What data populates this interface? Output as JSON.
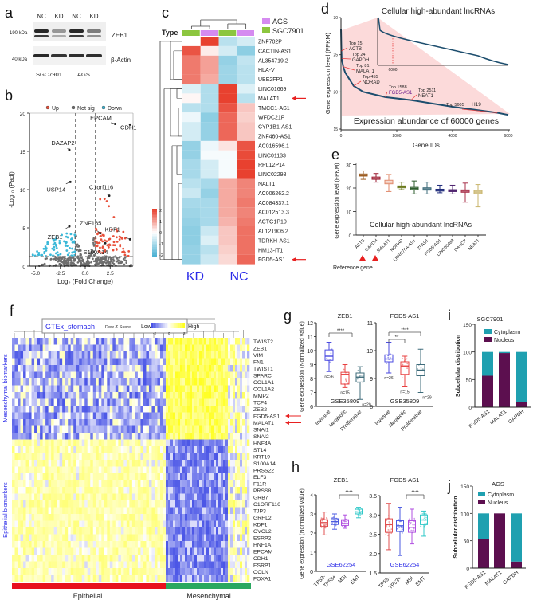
{
  "chart_data": [
    {
      "panel": "a",
      "type": "western-blot",
      "lanes": [
        "NC",
        "KD",
        "NC",
        "KD"
      ],
      "groups": [
        "SGC7901",
        "AGS"
      ],
      "markers": [
        "190 kDa",
        "40 kDa"
      ],
      "proteins": [
        "ZEB1",
        "β-Actin"
      ],
      "band_intensity": {
        "ZEB1": [
          1.0,
          0.35,
          1.0,
          0.5
        ],
        "beta_actin": [
          1.0,
          0.9,
          0.95,
          0.95
        ]
      }
    },
    {
      "panel": "b",
      "type": "scatter",
      "legend": [
        "Up",
        "Not sig",
        "Down"
      ],
      "colors": {
        "Up": "#e8503a",
        "Not sig": "#6e6e6e",
        "Down": "#3ab8d8"
      },
      "xlabel": "Log₂ (Fold Change)",
      "ylabel": "-Log₁₀ (Padj)",
      "xlim": [
        -5.5,
        4.8
      ],
      "ylim": [
        0,
        20
      ],
      "xticks": [
        "-5.0",
        "-2.5",
        "0.0",
        "2.5"
      ],
      "xtick_values": [
        -5,
        -2.5,
        0,
        2.5
      ],
      "yticks": [
        "0",
        "5",
        "10",
        "15",
        "20"
      ],
      "ytick_values": [
        0,
        5,
        10,
        15,
        20
      ],
      "thresholds": {
        "log2fc": [
          -1,
          1
        ],
        "neg_log10_padj": 1.3
      },
      "labeled_points": [
        {
          "gene": "EPCAM",
          "x": 3.0,
          "y": 18.6,
          "group": "Up"
        },
        {
          "gene": "CDH1",
          "x": 4.5,
          "y": 18.5,
          "group": "Up"
        },
        {
          "gene": "DAZAP2",
          "x": -1.6,
          "y": 15.2,
          "group": "Down"
        },
        {
          "gene": "USP14",
          "x": -1.5,
          "y": 11.0,
          "group": "Down"
        },
        {
          "gene": "C1orf116",
          "x": 2.4,
          "y": 9.2,
          "group": "Up"
        },
        {
          "gene": "ZEB1",
          "x": -1.6,
          "y": 5.2,
          "group": "Down"
        },
        {
          "gene": "ZNF165",
          "x": 1.5,
          "y": 4.3,
          "group": "Up"
        },
        {
          "gene": "S100A14",
          "x": 2.0,
          "y": 3.0,
          "group": "Up"
        },
        {
          "gene": "KDF1",
          "x": 4.5,
          "y": 3.5,
          "group": "Up"
        }
      ]
    },
    {
      "panel": "c",
      "type": "heatmap",
      "type_label": "Type",
      "legend": [
        {
          "name": "AGS",
          "color": "#d58bf0"
        },
        {
          "name": "SGC7901",
          "color": "#8cc63f"
        }
      ],
      "columns": [
        {
          "type": "SGC7901",
          "group": "KD"
        },
        {
          "type": "AGS",
          "group": "KD"
        },
        {
          "type": "SGC7901",
          "group": "NC"
        },
        {
          "type": "AGS",
          "group": "NC"
        }
      ],
      "group_labels": [
        "KD",
        "NC"
      ],
      "scale_ticks": [
        "2",
        "1",
        "0",
        "-1",
        "-2"
      ],
      "highlighted": [
        "MALAT1",
        "FGD5-AS1"
      ],
      "rows": [
        "ZNF702P",
        "CACTIN-AS1",
        "AL354719.2",
        "HLA-V",
        "UBE2FP1",
        "LINC01669",
        "MALAT1",
        "TMCC1-AS1",
        "WFDC21P",
        "CYP1B1-AS1",
        "ZNF460-AS1",
        "AC016596.1",
        "LINC01133",
        "RPL12P14",
        "LINC02298",
        "NALT1",
        "AC006262.2",
        "AC084337.1",
        "AC012513.3",
        "ACTG1P10",
        "AL121906.2",
        "TDRKH-AS1",
        "HM13-IT1",
        "FGD5-AS1"
      ],
      "values": [
        [
          0.0,
          2.0,
          -0.8,
          -0.5
        ],
        [
          1.8,
          0.2,
          -0.5,
          -1.3
        ],
        [
          1.4,
          1.0,
          -1.2,
          -0.7
        ],
        [
          1.4,
          1.0,
          -1.1,
          -0.8
        ],
        [
          1.4,
          0.9,
          -1.1,
          -0.8
        ],
        [
          -0.4,
          -0.9,
          2.0,
          -0.4
        ],
        [
          0.1,
          -0.9,
          2.0,
          -0.8
        ],
        [
          -0.8,
          -0.9,
          1.8,
          0.6
        ],
        [
          -0.2,
          -1.3,
          1.6,
          0.5
        ],
        [
          -0.5,
          -1.2,
          1.6,
          0.6
        ],
        [
          -0.5,
          -1.2,
          1.6,
          0.6
        ],
        [
          -1.2,
          -0.2,
          0.3,
          1.8
        ],
        [
          -1.2,
          -0.1,
          -0.1,
          1.9
        ],
        [
          -1.0,
          -0.5,
          -0.1,
          2.0
        ],
        [
          -1.0,
          -0.5,
          -0.1,
          2.0
        ],
        [
          -0.8,
          -1.0,
          0.9,
          1.3
        ],
        [
          -0.6,
          -1.2,
          0.9,
          1.3
        ],
        [
          -1.0,
          -1.0,
          0.9,
          1.4
        ],
        [
          -1.1,
          -1.0,
          0.9,
          1.3
        ],
        [
          -1.2,
          -1.0,
          0.8,
          1.4
        ],
        [
          -1.3,
          -0.6,
          0.6,
          1.5
        ],
        [
          -1.3,
          -0.4,
          0.6,
          1.5
        ],
        [
          -1.2,
          -0.8,
          0.5,
          1.5
        ],
        [
          -1.2,
          -0.6,
          0.4,
          1.6
        ]
      ]
    },
    {
      "panel": "d",
      "type": "line",
      "title": "Cellular high-abundant lncRNAs",
      "subtitle": "Expression abundance of 60000 genes",
      "xlabel": "Gene IDs",
      "ylabel": "Gene expression level (FPKM)",
      "xlim": [
        0,
        6000
      ],
      "ylim": [
        15,
        30
      ],
      "xticks": [
        "0",
        "2000",
        "4000",
        "6000"
      ],
      "xtick_values": [
        0,
        2000,
        4000,
        6000
      ],
      "yticks": [
        "15",
        "20",
        "25",
        "30"
      ],
      "ytick_values": [
        15,
        20,
        25,
        30
      ],
      "x": [
        0,
        15,
        24,
        81,
        150,
        455,
        800,
        1588,
        2511,
        4000,
        5605,
        6000
      ],
      "y": [
        28.5,
        25.5,
        24.5,
        23.4,
        22.6,
        20.8,
        20.0,
        19.3,
        18.9,
        18.0,
        17.2,
        16.9
      ],
      "inset": {
        "xtick_label": "6000",
        "xlim": [
          0,
          60000
        ],
        "ylim": [
          0,
          30
        ]
      },
      "annotations": [
        {
          "rank": "Top 15",
          "gene": "ACTB"
        },
        {
          "rank": "Top 24",
          "gene": "GAPDH"
        },
        {
          "rank": "Top 81",
          "gene": "MALAT1"
        },
        {
          "rank": "Top 455",
          "gene": "NORAD"
        },
        {
          "rank": "Top 1588",
          "gene": "FGD5-AS1"
        },
        {
          "rank": "Top 2511",
          "gene": "NEAT1"
        },
        {
          "rank": "Top 5605",
          "gene": "H19"
        }
      ]
    },
    {
      "panel": "e",
      "type": "box",
      "title": "Cellular high-abundant lncRNAs",
      "ylabel": "Gene expression level (FPKM)",
      "ylim": [
        0,
        30
      ],
      "yticks": [
        "0",
        "10",
        "20",
        "30"
      ],
      "ytick_values": [
        0,
        10,
        20,
        30
      ],
      "reference_label": "Reference gene",
      "categories": [
        "ACTB",
        "GAPDH",
        "MALAT1",
        "NORAD",
        "LRRC75A-AS1",
        "ZFAS1",
        "FGD5-AS1",
        "LINC00483",
        "DANCR",
        "NEAT1"
      ],
      "colors": [
        "#9b5a1e",
        "#9b1b30",
        "#e08a6b",
        "#6b7a1e",
        "#2e5e2e",
        "#3d6b7a",
        "#1e2a7a",
        "#4a1e6b",
        "#a8304a",
        "#c8b46b"
      ],
      "min": [
        23.7,
        22.5,
        18.5,
        19.3,
        17.5,
        17.5,
        18.0,
        17.5,
        14.0,
        12.0
      ],
      "q1": [
        25.1,
        23.7,
        21.8,
        20.1,
        19.3,
        19.1,
        18.7,
        18.5,
        18.2,
        17.7
      ],
      "median": [
        25.5,
        24.2,
        22.5,
        20.5,
        19.8,
        19.6,
        19.1,
        18.9,
        18.7,
        18.3
      ],
      "q3": [
        26.0,
        24.7,
        23.3,
        20.9,
        20.3,
        20.1,
        19.5,
        19.3,
        19.2,
        18.9
      ],
      "max": [
        27.3,
        26.2,
        25.8,
        22.5,
        23.0,
        22.5,
        21.2,
        21.2,
        22.1,
        21.5
      ],
      "reference_genes": [
        "ACTB",
        "GAPDH"
      ]
    },
    {
      "panel": "f",
      "type": "heatmap",
      "title": "GTEx_stomach",
      "scale_label": "Row Z-Score",
      "low": "Low",
      "high": "High",
      "scale_ticks": [
        "-2",
        "0",
        "2"
      ],
      "row_groups": [
        "Mesenchymal biomarkers",
        "Epithelial biomarkers"
      ],
      "column_groups": [
        "Epithelial",
        "Mesenchymal"
      ],
      "column_group_colors": [
        "#e8101e",
        "#2aa860"
      ],
      "highlighted": [
        "FGD5-AS1",
        "MALAT1"
      ],
      "mesenchymal_genes": [
        "TWIST2",
        "ZEB1",
        "VIM",
        "FN1",
        "TWIST1",
        "SPARC",
        "COL1A1",
        "COL1A2",
        "MMP2",
        "TCF4",
        "ZEB2",
        "FGD5-AS1",
        "MALAT1",
        "SNAI1",
        "SNAI2"
      ],
      "epithelial_genes": [
        "HNF4A",
        "ST14",
        "KRT19",
        "S100A14",
        "PRSS22",
        "ELF3",
        "F11R",
        "PRSS8",
        "GRB7",
        "C1ORF116",
        "TJP3",
        "GRHL2",
        "KDF1",
        "OVOL2",
        "ESRP2",
        "HNF1A",
        "EPCAM",
        "CDH1",
        "ESRP1",
        "OCLN",
        "FOXA1"
      ]
    },
    {
      "panel": "g",
      "type": "box",
      "ylabel": "Gene expression (Normalized value)",
      "dataset": "GSE35809",
      "categories": [
        "Invasive",
        "Metabolic",
        "Proliferative"
      ],
      "colors": [
        "#4a4ae0",
        "#e84040",
        "#3d6b7a"
      ],
      "n": [
        "n=26",
        "n=15",
        "n=29"
      ],
      "subplots": [
        {
          "title": "ZEB1",
          "ylim": [
            6,
            12
          ],
          "yticks": [
            "6",
            "7",
            "8",
            "9",
            "10",
            "11",
            "12"
          ],
          "min": [
            8.5,
            7.35,
            6.5
          ],
          "q1": [
            9.3,
            7.6,
            7.75
          ],
          "median": [
            9.6,
            8.3,
            8.1
          ],
          "q3": [
            10.05,
            8.45,
            8.4
          ],
          "max": [
            10.6,
            9.0,
            8.85
          ],
          "significance": [
            "****"
          ]
        },
        {
          "title": "FGD5-AS1",
          "ylim": [
            8,
            11
          ],
          "yticks": [
            "8",
            "9",
            "10",
            "11"
          ],
          "min": [
            9.2,
            8.7,
            8.5
          ],
          "q1": [
            9.6,
            9.15,
            9.1
          ],
          "median": [
            9.7,
            9.45,
            9.3
          ],
          "q3": [
            9.85,
            9.6,
            9.5
          ],
          "max": [
            10.3,
            9.8,
            10.05
          ],
          "significance": [
            "**",
            "****"
          ]
        }
      ]
    },
    {
      "panel": "h",
      "type": "box",
      "ylabel": "Gene expression (Normalized value)",
      "dataset": "GSE62254",
      "categories": [
        "TP53-",
        "TP53+",
        "MSI",
        "EMT"
      ],
      "colors": [
        "#e05050",
        "#4a5ae0",
        "#b050e0",
        "#30c8c8"
      ],
      "subplots": [
        {
          "title": "ZEB1",
          "ylim": [
            0,
            4
          ],
          "yticks": [
            "0",
            "1",
            "2",
            "3",
            "4"
          ],
          "min": [
            1.9,
            2.2,
            2.25,
            2.8
          ],
          "q1": [
            2.35,
            2.45,
            2.4,
            3.0
          ],
          "median": [
            2.55,
            2.6,
            2.5,
            3.1
          ],
          "q3": [
            2.7,
            2.75,
            2.7,
            3.25
          ],
          "max": [
            3.1,
            3.0,
            2.95,
            3.35
          ],
          "significance": [
            "****"
          ]
        },
        {
          "title": "FGD5-AS1",
          "ylim": [
            1.5,
            3.5
          ],
          "yticks": [
            "1.5",
            "2.0",
            "2.5",
            "3.0",
            "3.5"
          ],
          "min": [
            2.1,
            1.95,
            2.25,
            2.45
          ],
          "q1": [
            2.55,
            2.57,
            2.55,
            2.75
          ],
          "median": [
            2.75,
            2.72,
            2.68,
            2.87
          ],
          "q3": [
            2.9,
            2.85,
            2.85,
            3.0
          ],
          "max": [
            3.3,
            3.2,
            3.15,
            3.1
          ],
          "significance": [
            "****"
          ]
        }
      ]
    },
    {
      "panel": "i",
      "type": "bar",
      "stacked": true,
      "title": "SGC7901",
      "ylabel": "Subcellular distribution",
      "ylim": [
        0,
        150
      ],
      "yticks": [
        "0",
        "50",
        "100",
        "150"
      ],
      "categories": [
        "FGD5-AS1",
        "MALAT1",
        "GAPDH"
      ],
      "series": [
        {
          "name": "Nucleus",
          "color": "#5c0f4f",
          "values": [
            57,
            98,
            10
          ]
        },
        {
          "name": "Cytoplasm",
          "color": "#1fa0b0",
          "values": [
            43,
            2,
            90
          ]
        }
      ],
      "legend_order": [
        "Cytoplasm",
        "Nucleus"
      ]
    },
    {
      "panel": "j",
      "type": "bar",
      "stacked": true,
      "title": "AGS",
      "ylabel": "Subcellular distribution",
      "ylim": [
        0,
        150
      ],
      "yticks": [
        "0",
        "50",
        "100",
        "150"
      ],
      "categories": [
        "FGD5-AS1",
        "MALAT1",
        "GAPDH"
      ],
      "series": [
        {
          "name": "Nucleus",
          "color": "#5c0f4f",
          "values": [
            53,
            100,
            12
          ]
        },
        {
          "name": "Cytoplasm",
          "color": "#1fa0b0",
          "values": [
            47,
            0,
            88
          ]
        }
      ],
      "legend_order": [
        "Cytoplasm",
        "Nucleus"
      ]
    }
  ]
}
